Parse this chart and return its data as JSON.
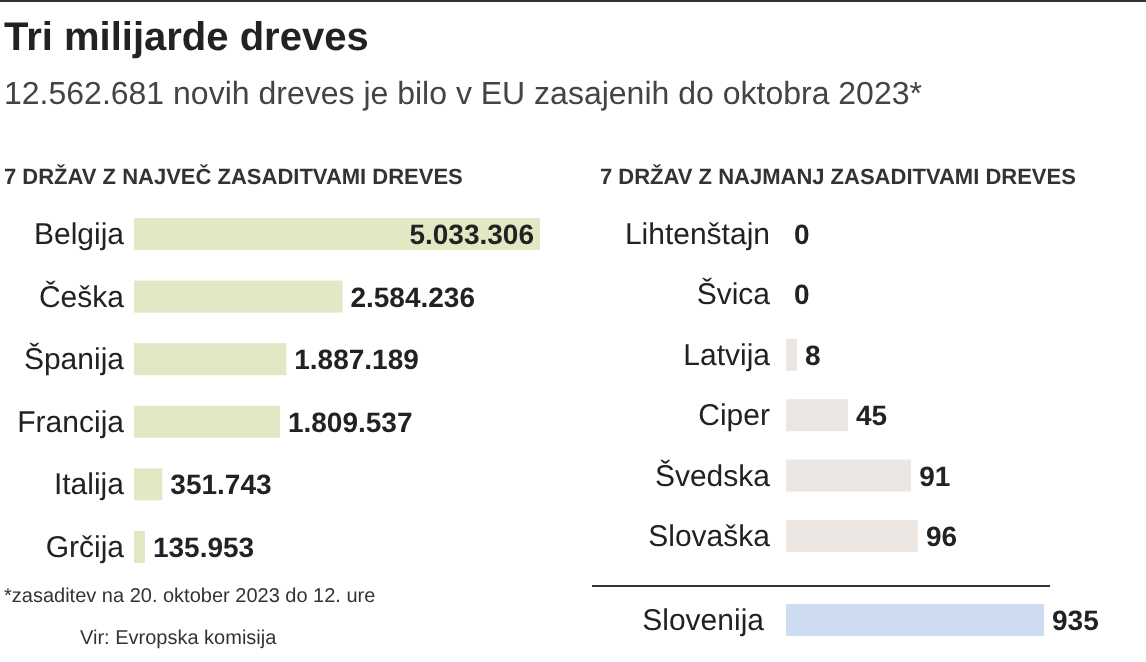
{
  "chart_data": [
    {
      "type": "other",
      "title": "Tri milijarde dreves",
      "subtitle": "12.562.681 novih dreves je bilo v EU zasajenih do oktobra 2023*",
      "annotations": [
        "*zasaditev na 20. oktober 2023 do 12. ure",
        "Vir: Evropska komisija"
      ]
    },
    {
      "type": "bar",
      "orientation": "horizontal",
      "title": "7 DRŽAV Z NAJVEČ ZASADITVAMI DREVES",
      "categories": [
        "Belgija",
        "Češka",
        "Španija",
        "Francija",
        "Italija",
        "Grčija"
      ],
      "values": [
        5033306,
        2584236,
        1887189,
        1809537,
        351743,
        135953
      ],
      "value_labels": [
        "5.033.306",
        "2.584.236",
        "1.887.189",
        "1.809.537",
        "351.743",
        "135.953"
      ],
      "color": "#e0e8c4"
    },
    {
      "type": "bar",
      "orientation": "horizontal",
      "title": "7 DRŽAV Z NAJMANJ ZASADITVAMI DREVES",
      "categories": [
        "Lihtenštajn",
        "Švica",
        "Latvija",
        "Ciper",
        "Švedska",
        "Slovaška"
      ],
      "values": [
        0,
        0,
        8,
        45,
        91,
        96
      ],
      "value_labels": [
        "0",
        "0",
        "8",
        "45",
        "91",
        "96"
      ],
      "color": "#ece6e2"
    },
    {
      "type": "bar",
      "orientation": "horizontal",
      "categories": [
        "Slovenija"
      ],
      "values": [
        935
      ],
      "value_labels": [
        "935"
      ],
      "color": "#cddcf0"
    }
  ]
}
